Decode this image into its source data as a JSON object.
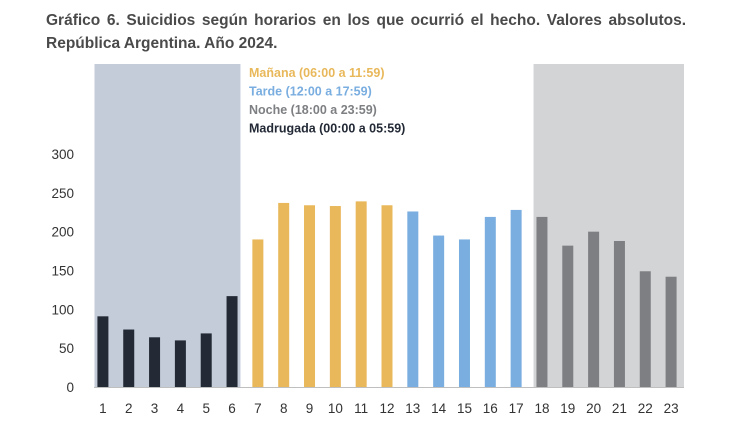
{
  "chart_data": {
    "type": "bar",
    "title": "Gráfico 6. Suicidios según horarios en los que ocurrió el hecho. Valores absolutos. República Argentina. Año 2024.",
    "xlabel": "",
    "ylabel": "",
    "ylim": [
      0,
      300
    ],
    "yticks": [
      "0",
      "50",
      "100",
      "150",
      "200",
      "250",
      "300"
    ],
    "categories": [
      "1",
      "2",
      "3",
      "4",
      "5",
      "6",
      "7",
      "8",
      "9",
      "10",
      "11",
      "12",
      "13",
      "14",
      "15",
      "16",
      "17",
      "18",
      "19",
      "20",
      "21",
      "22",
      "23"
    ],
    "values": [
      91,
      74,
      64,
      60,
      69,
      117,
      190,
      237,
      234,
      233,
      239,
      234,
      226,
      195,
      190,
      219,
      228,
      219,
      182,
      200,
      188,
      149,
      142
    ],
    "bar_groups": [
      "madrugada",
      "madrugada",
      "madrugada",
      "madrugada",
      "madrugada",
      "madrugada",
      "manana",
      "manana",
      "manana",
      "manana",
      "manana",
      "manana",
      "tarde",
      "tarde",
      "tarde",
      "tarde",
      "tarde",
      "noche",
      "noche",
      "noche",
      "noche",
      "noche",
      "noche"
    ],
    "legend": [
      {
        "key": "manana",
        "label": "Mañana (06:00 a 11:59)",
        "color": "#e8b85a"
      },
      {
        "key": "tarde",
        "label": "Tarde (12:00 a 17:59)",
        "color": "#7aaee0"
      },
      {
        "key": "noche",
        "label": "Noche (18:00 a 23:59)",
        "color": "#7d7f82"
      },
      {
        "key": "madrugada",
        "label": "Madrugada (00:00 a 05:59)",
        "color": "#232a36"
      }
    ],
    "legend_position": "top-left",
    "grid": false,
    "shaded_regions": [
      {
        "from": "1",
        "to": "6",
        "color": "#c5ccd9"
      },
      {
        "from": "18",
        "to": "23",
        "color": "#d3d4d6"
      }
    ]
  }
}
